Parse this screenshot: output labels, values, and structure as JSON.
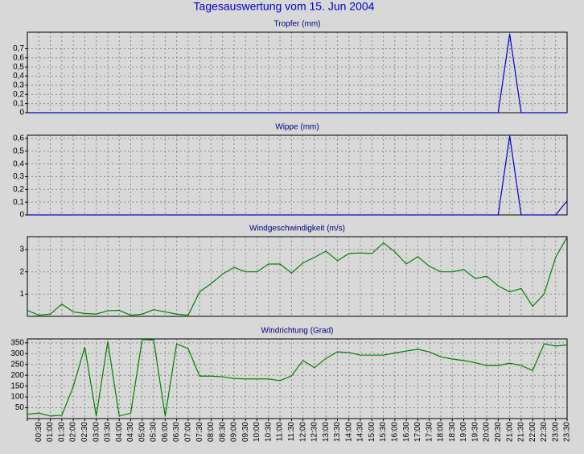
{
  "title": "Tagesauswertung vom 15. Jun 2004",
  "chart_data": [
    {
      "type": "line",
      "title": "Tropfer (mm)",
      "color": "#0000cc",
      "grid": true,
      "ylim": [
        0,
        0.88
      ],
      "yticks": [
        0,
        {
          "value": 0.1,
          "label": "0,1"
        },
        {
          "value": 0.2,
          "label": "0,2"
        },
        {
          "value": 0.3,
          "label": "0,3"
        },
        {
          "value": 0.4,
          "label": "0,4"
        },
        {
          "value": 0.5,
          "label": "0,5"
        },
        {
          "value": 0.6,
          "label": "0,6"
        },
        {
          "value": 0.7,
          "label": "0,7"
        }
      ],
      "values": [
        0,
        0,
        0,
        0,
        0,
        0,
        0,
        0,
        0,
        0,
        0,
        0,
        0,
        0,
        0,
        0,
        0,
        0,
        0,
        0,
        0,
        0,
        0,
        0,
        0,
        0,
        0,
        0,
        0,
        0,
        0,
        0,
        0,
        0,
        0,
        0,
        0,
        0,
        0,
        0,
        0,
        0,
        0.86,
        0,
        0,
        0,
        0,
        0
      ]
    },
    {
      "type": "line",
      "title": "Wippe (mm)",
      "color": "#0000cc",
      "grid": true,
      "ylim": [
        0,
        0.625
      ],
      "yticks": [
        0,
        {
          "value": 0.1,
          "label": "0,1"
        },
        {
          "value": 0.2,
          "label": "0,2"
        },
        {
          "value": 0.3,
          "label": "0,3"
        },
        {
          "value": 0.4,
          "label": "0,4"
        },
        {
          "value": 0.5,
          "label": "0,5"
        },
        {
          "value": 0.6,
          "label": "0,6"
        }
      ],
      "values": [
        0,
        0,
        0,
        0,
        0,
        0,
        0,
        0,
        0,
        0,
        0,
        0,
        0,
        0,
        0,
        0,
        0,
        0,
        0,
        0,
        0,
        0,
        0,
        0,
        0,
        0,
        0,
        0,
        0,
        0,
        0,
        0,
        0,
        0,
        0,
        0,
        0,
        0,
        0,
        0,
        0,
        0,
        0.62,
        0,
        0,
        0,
        0,
        0.11
      ]
    },
    {
      "type": "line",
      "title": "Windgeschwindigkeit (m/s)",
      "color": "#008000",
      "grid": true,
      "ylim": [
        0,
        3.58
      ],
      "yticks": [
        1,
        2,
        3
      ],
      "values": [
        0.27,
        0.05,
        0.1,
        0.55,
        0.2,
        0.13,
        0.1,
        0.25,
        0.27,
        0.05,
        0.1,
        0.3,
        0.2,
        0.1,
        0.05,
        1.1,
        1.47,
        1.9,
        2.2,
        2.0,
        2.0,
        2.35,
        2.35,
        1.95,
        2.4,
        2.65,
        2.93,
        2.5,
        2.82,
        2.85,
        2.82,
        3.3,
        2.9,
        2.35,
        2.68,
        2.25,
        2.0,
        2.0,
        2.1,
        1.7,
        1.8,
        1.37,
        1.1,
        1.25,
        0.45,
        1.0,
        2.65,
        3.55
      ]
    },
    {
      "type": "line",
      "title": "Windrichtung (Grad)",
      "color": "#008000",
      "grid": true,
      "ylim": [
        0,
        368
      ],
      "yticks": [
        50,
        100,
        150,
        200,
        250,
        300,
        350
      ],
      "categories": [
        null,
        "00:30",
        "01:00",
        "01:30",
        "02:00",
        "02:30",
        "03:00",
        "03:30",
        "04:00",
        "04:30",
        "05:00",
        "05:30",
        "06:00",
        "06:30",
        "07:00",
        "07:30",
        "08:00",
        "08:30",
        "09:00",
        "09:30",
        "10:00",
        "10:30",
        "11:00",
        "11:30",
        "12:00",
        "12:30",
        "13:00",
        "13:30",
        "14:00",
        "14:30",
        "15:00",
        "15:30",
        "16:00",
        "16:30",
        "17:00",
        "17:30",
        "18:00",
        "18:30",
        "19:00",
        "19:30",
        "20:00",
        "20:30",
        "21:00",
        "21:30",
        "22:00",
        "22:30",
        "23:00",
        "23:30"
      ],
      "values": [
        20,
        25,
        12,
        15,
        148,
        330,
        12,
        355,
        12,
        25,
        365,
        363,
        12,
        345,
        323,
        196,
        196,
        193,
        185,
        183,
        183,
        183,
        175,
        197,
        268,
        235,
        278,
        308,
        305,
        293,
        293,
        293,
        303,
        312,
        320,
        308,
        285,
        275,
        268,
        258,
        245,
        245,
        256,
        245,
        222,
        345,
        335,
        340
      ]
    }
  ]
}
